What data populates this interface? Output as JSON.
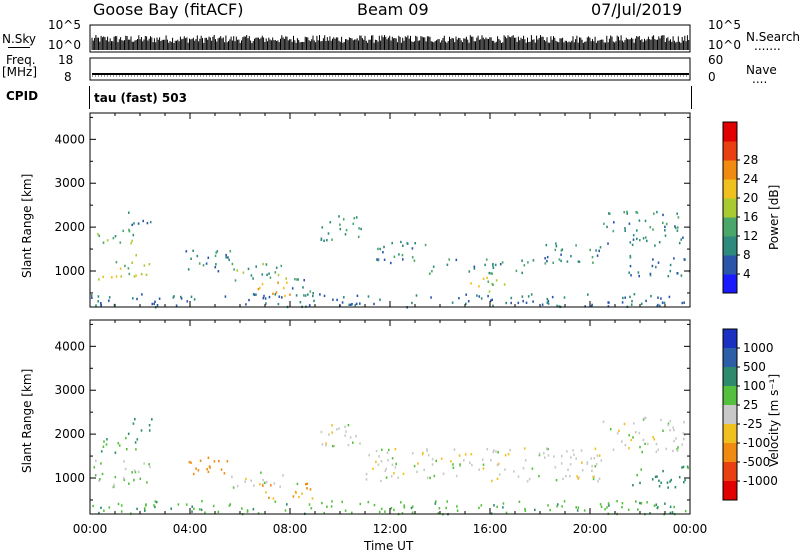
{
  "header": {
    "station": "Goose Bay (fitACF)",
    "beam": "Beam 09",
    "date": "07/Jul/2019"
  },
  "top_panels": {
    "nsky_label": "N.Sky",
    "nsearch_label": "N.Search",
    "nsearch_dots": ".......",
    "nsky_ticks": [
      "10^5",
      "10^0"
    ],
    "nsearch_ticks": [
      "10^5",
      "10^0"
    ],
    "freq_label_1": "Freq.",
    "freq_label_2": "[MHz]",
    "freq_ticks": [
      "18",
      "8"
    ],
    "nave_label": "Nave",
    "nave_dots": "....",
    "nave_ticks": [
      "60",
      "0"
    ],
    "cpid_label": "CPID",
    "cpid_value": "tau (fast) 503"
  },
  "chart_data": [
    {
      "type": "heatmap",
      "name": "power",
      "ylabel": "Slant Range [km]",
      "xlabel": "",
      "x_ticks": [
        "00:00",
        "04:00",
        "08:00",
        "12:00",
        "16:00",
        "20:00",
        "00:00"
      ],
      "y_ticks": [
        1000,
        2000,
        3000,
        4000
      ],
      "xlim": [
        0,
        24
      ],
      "ylim": [
        180,
        4600
      ],
      "colorbar": {
        "label": "Power [dB]",
        "ticks": [
          4,
          8,
          12,
          16,
          20,
          24,
          28
        ],
        "colors": [
          "#1a1aff",
          "#2a55a8",
          "#2d8a7d",
          "#4ba66a",
          "#aacb2f",
          "#f0c020",
          "#f08a10",
          "#e84010",
          "#e00000"
        ]
      },
      "regions": [
        {
          "t0": 0.1,
          "t1": 1.1,
          "r0": 750,
          "r1": 950,
          "v": 22
        },
        {
          "t0": 1.0,
          "t1": 2.4,
          "r0": 900,
          "r1": 1450,
          "v": 17
        },
        {
          "t0": 0.1,
          "t1": 1.9,
          "r0": 1600,
          "r1": 2000,
          "v": 14
        },
        {
          "t0": 1.5,
          "t1": 2.5,
          "r0": 2000,
          "r1": 2400,
          "v": 7
        },
        {
          "t0": 3.8,
          "t1": 5.6,
          "r0": 900,
          "r1": 1500,
          "v": 9
        },
        {
          "t0": 5.6,
          "t1": 8.0,
          "r0": 750,
          "r1": 1200,
          "v": 13
        },
        {
          "t0": 6.7,
          "t1": 8.2,
          "r0": 450,
          "r1": 800,
          "v": 25
        },
        {
          "t0": 8.0,
          "t1": 9.0,
          "r0": 450,
          "r1": 1100,
          "v": 11
        },
        {
          "t0": 9.2,
          "t1": 11.0,
          "r0": 1700,
          "r1": 2300,
          "v": 12
        },
        {
          "t0": 11.0,
          "t1": 13.5,
          "r0": 1200,
          "r1": 1700,
          "v": 11
        },
        {
          "t0": 13.5,
          "t1": 17.5,
          "r0": 950,
          "r1": 1300,
          "v": 10
        },
        {
          "t0": 15.2,
          "t1": 16.8,
          "r0": 550,
          "r1": 900,
          "v": 19
        },
        {
          "t0": 17.5,
          "t1": 20.5,
          "r0": 1200,
          "r1": 1700,
          "v": 10
        },
        {
          "t0": 20.5,
          "t1": 23.8,
          "r0": 1600,
          "r1": 2400,
          "v": 11
        },
        {
          "t0": 21.5,
          "t1": 24.0,
          "r0": 900,
          "r1": 1400,
          "v": 9
        },
        {
          "t0": 0.0,
          "t1": 24.0,
          "r0": 200,
          "r1": 500,
          "v": 8
        }
      ]
    },
    {
      "type": "heatmap",
      "name": "velocity",
      "ylabel": "Slant Range [km]",
      "xlabel": "Time UT",
      "x_ticks": [
        "00:00",
        "04:00",
        "08:00",
        "12:00",
        "16:00",
        "20:00",
        "00:00"
      ],
      "y_ticks": [
        1000,
        2000,
        3000,
        4000
      ],
      "xlim": [
        0,
        24
      ],
      "ylim": [
        180,
        4600
      ],
      "colorbar": {
        "label": "Velocity [m s⁻¹]",
        "ticks": [
          "1000",
          "500",
          "100",
          "25",
          "-25",
          "-100",
          "-500",
          "-1000"
        ],
        "colors": [
          "#1a30c0",
          "#2c5fa8",
          "#2d8a6d",
          "#55c040",
          "#c8c8c8",
          "#f0c020",
          "#f08a10",
          "#e84010",
          "#e00000"
        ]
      },
      "regions": [
        {
          "t0": 0.1,
          "t1": 2.4,
          "r0": 800,
          "r1": 1450,
          "v": 25
        },
        {
          "t0": 0.1,
          "t1": 1.9,
          "r0": 1600,
          "r1": 2000,
          "v": 100
        },
        {
          "t0": 1.5,
          "t1": 2.5,
          "r0": 2000,
          "r1": 2400,
          "v": 150
        },
        {
          "t0": 3.8,
          "t1": 5.6,
          "r0": 1000,
          "r1": 1500,
          "v": -150
        },
        {
          "t0": 5.6,
          "t1": 8.3,
          "r0": 800,
          "r1": 1150,
          "v": 0
        },
        {
          "t0": 6.7,
          "t1": 9.0,
          "r0": 550,
          "r1": 900,
          "v": -100
        },
        {
          "t0": 9.2,
          "t1": 11.0,
          "r0": 1700,
          "r1": 2300,
          "v": 0
        },
        {
          "t0": 11.0,
          "t1": 20.5,
          "r0": 950,
          "r1": 1700,
          "v": 0
        },
        {
          "t0": 20.5,
          "t1": 23.8,
          "r0": 1600,
          "r1": 2400,
          "v": 0
        },
        {
          "t0": 21.5,
          "t1": 24.0,
          "r0": 800,
          "r1": 1300,
          "v": 120
        },
        {
          "t0": 0.0,
          "t1": 24.0,
          "r0": 200,
          "r1": 500,
          "v": 80
        }
      ]
    }
  ]
}
